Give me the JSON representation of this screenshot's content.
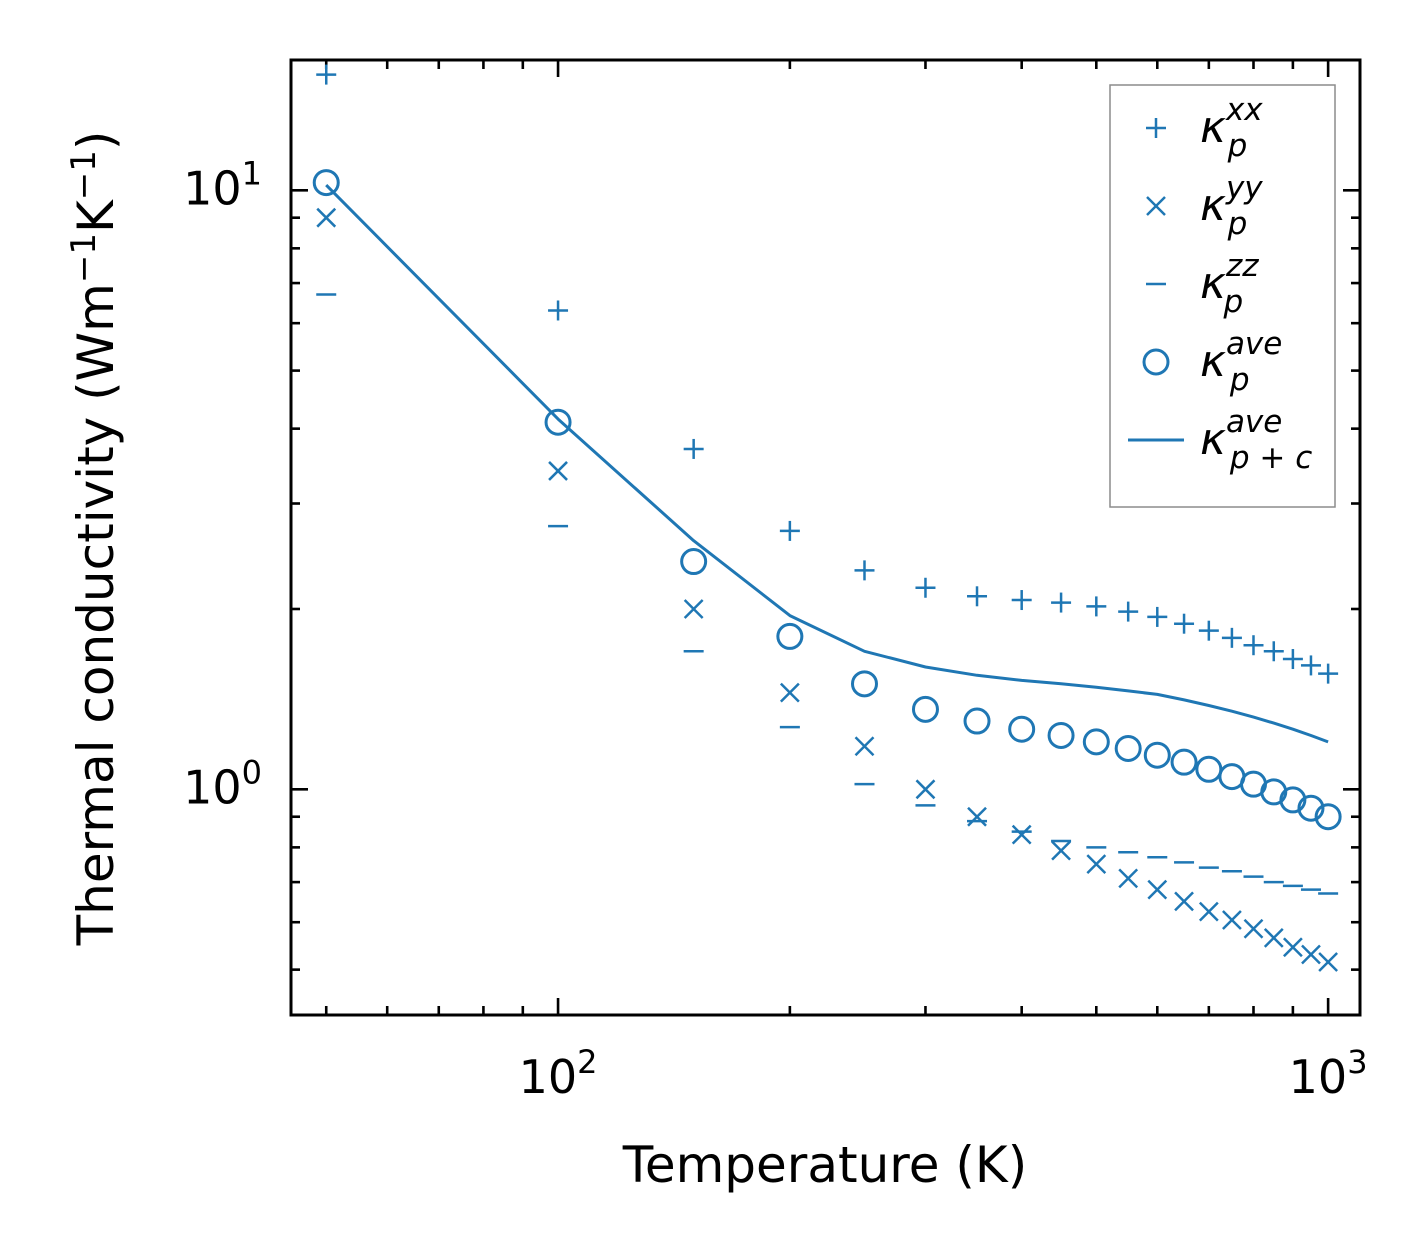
{
  "colors": {
    "series": "#1f77b4",
    "axis": "#000000",
    "legend_frame": "#8c8c8c"
  },
  "chart_data": {
    "type": "scatter",
    "title": "",
    "xlabel": "Temperature (K)",
    "ylabel_main": "Thermal conductivity (Wm",
    "ylabel_sup1": "−1",
    "ylabel_mid": "K",
    "ylabel_sup2": "−1",
    "ylabel_end": ")",
    "xscale": "log",
    "yscale": "log",
    "xlim": [
      45,
      1100
    ],
    "ylim": [
      0.42,
      16.5
    ],
    "x_ticks": [
      {
        "base": "10",
        "exp": "2",
        "value": 100
      },
      {
        "base": "10",
        "exp": "3",
        "value": 1000
      }
    ],
    "y_ticks": [
      {
        "base": "10",
        "exp": "0",
        "value": 1
      },
      {
        "base": "10",
        "exp": "1",
        "value": 10
      }
    ],
    "legend_position": "top-right",
    "x": [
      50,
      100,
      150,
      200,
      250,
      300,
      350,
      400,
      450,
      500,
      550,
      600,
      650,
      700,
      750,
      800,
      850,
      900,
      950,
      1000
    ],
    "series": [
      {
        "name": "κ_p^xx",
        "sym": "κ",
        "sub": "p",
        "sup": "xx",
        "marker": "plus",
        "values": [
          15.6,
          6.3,
          3.7,
          2.7,
          2.32,
          2.17,
          2.1,
          2.07,
          2.05,
          2.02,
          1.98,
          1.94,
          1.89,
          1.84,
          1.79,
          1.74,
          1.7,
          1.65,
          1.61,
          1.56
        ]
      },
      {
        "name": "κ_p^yy",
        "sym": "κ",
        "sub": "p",
        "sup": "yy",
        "marker": "x",
        "values": [
          9.0,
          3.4,
          2.0,
          1.45,
          1.18,
          1.0,
          0.9,
          0.84,
          0.79,
          0.75,
          0.71,
          0.68,
          0.65,
          0.625,
          0.605,
          0.585,
          0.565,
          0.545,
          0.53,
          0.515
        ]
      },
      {
        "name": "κ_p^zz",
        "sym": "κ",
        "sub": "p",
        "sup": "zz",
        "marker": "hline",
        "values": [
          6.7,
          2.75,
          1.7,
          1.27,
          1.02,
          0.94,
          0.885,
          0.85,
          0.82,
          0.8,
          0.785,
          0.77,
          0.755,
          0.74,
          0.73,
          0.715,
          0.7,
          0.69,
          0.68,
          0.67
        ]
      },
      {
        "name": "κ_p^ave",
        "sym": "κ",
        "sub": "p",
        "sup": "ave",
        "marker": "circle",
        "values": [
          10.3,
          4.1,
          2.4,
          1.8,
          1.5,
          1.36,
          1.3,
          1.26,
          1.23,
          1.2,
          1.17,
          1.14,
          1.11,
          1.08,
          1.05,
          1.02,
          0.99,
          0.96,
          0.93,
          0.9
        ]
      },
      {
        "name": "κ_p+c^ave",
        "sym": "κ",
        "sub": "p + c",
        "sup": "ave",
        "marker": "line",
        "values": [
          10.2,
          4.15,
          2.6,
          1.95,
          1.7,
          1.6,
          1.55,
          1.52,
          1.5,
          1.48,
          1.46,
          1.44,
          1.41,
          1.38,
          1.35,
          1.32,
          1.29,
          1.26,
          1.23,
          1.2
        ]
      }
    ]
  }
}
